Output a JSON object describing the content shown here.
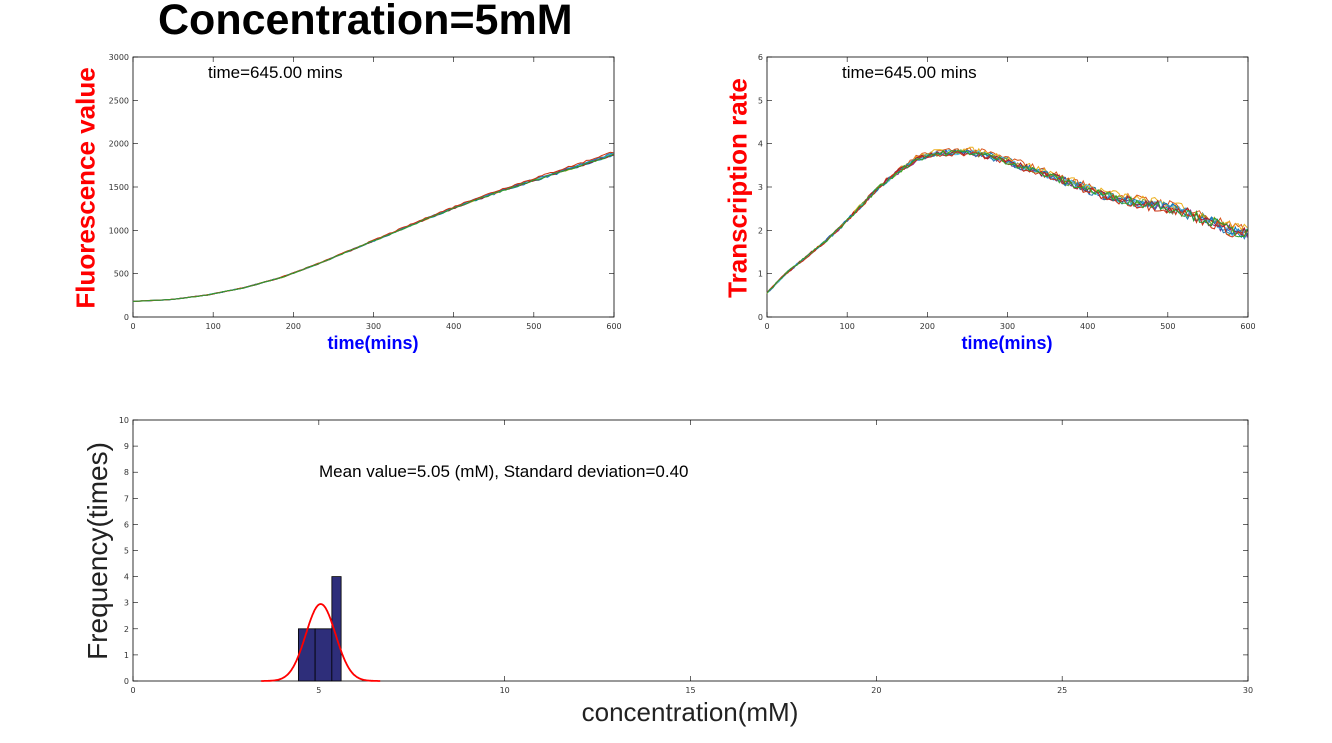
{
  "title": "Concentration=5mM",
  "chart_data": [
    {
      "type": "line",
      "ylabel": "Fluorescence value",
      "xlabel": "time(mins)",
      "annotation": "time=645.00 mins",
      "xlim": [
        0,
        645
      ],
      "ylim": [
        0,
        3000
      ],
      "xticks": [
        "0",
        "100",
        "200",
        "300",
        "400",
        "500",
        "600"
      ],
      "yticks": [
        "0",
        "500",
        "1000",
        "1500",
        "2000",
        "2500",
        "3000"
      ],
      "series_count": 10,
      "x": [
        0,
        50,
        100,
        150,
        200,
        250,
        300,
        350,
        400,
        450,
        500,
        550,
        600,
        645
      ],
      "mean_values": [
        180,
        200,
        255,
        340,
        460,
        620,
        800,
        980,
        1160,
        1330,
        1480,
        1620,
        1760,
        1890
      ],
      "colors": [
        "#0072bd",
        "#d95319",
        "#edb120",
        "#7e2f8e",
        "#77ac30",
        "#4dbeee",
        "#a2142f",
        "#1f77b4",
        "#cc3311",
        "#2ca02c"
      ]
    },
    {
      "type": "line",
      "ylabel": "Transcription rate",
      "xlabel": "time(mins)",
      "annotation": "time=645.00 mins",
      "xlim": [
        0,
        645
      ],
      "ylim": [
        0,
        6
      ],
      "xticks": [
        "0",
        "100",
        "200",
        "300",
        "400",
        "500",
        "600"
      ],
      "yticks": [
        "0",
        "1",
        "2",
        "3",
        "4",
        "5",
        "6"
      ],
      "series_count": 10,
      "x": [
        0,
        25,
        50,
        75,
        100,
        125,
        150,
        175,
        200,
        225,
        250,
        275,
        300,
        325,
        350,
        375,
        400,
        425,
        450,
        475,
        500,
        525,
        550,
        575,
        600,
        625,
        645
      ],
      "mean_values": [
        0.55,
        1.0,
        1.35,
        1.7,
        2.1,
        2.55,
        3.0,
        3.35,
        3.65,
        3.78,
        3.82,
        3.82,
        3.72,
        3.6,
        3.45,
        3.3,
        3.15,
        3.0,
        2.85,
        2.75,
        2.65,
        2.6,
        2.5,
        2.35,
        2.2,
        2.0,
        1.95
      ],
      "colors": [
        "#0072bd",
        "#d95319",
        "#edb120",
        "#7e2f8e",
        "#77ac30",
        "#4dbeee",
        "#a2142f",
        "#1f77b4",
        "#cc3311",
        "#2ca02c"
      ]
    },
    {
      "type": "bar",
      "ylabel": "Frequency(times)",
      "xlabel": "concentration(mM)",
      "annotation": "Mean value=5.05 (mM), Standard deviation=0.40",
      "xlim": [
        0,
        30
      ],
      "ylim": [
        0,
        10
      ],
      "xticks": [
        "0",
        "5",
        "10",
        "15",
        "20",
        "25",
        "30"
      ],
      "yticks": [
        "0",
        "1",
        "2",
        "3",
        "4",
        "5",
        "6",
        "7",
        "8",
        "9",
        "10"
      ],
      "bins": [
        {
          "from": 4.45,
          "to": 4.9,
          "count": 2
        },
        {
          "from": 4.9,
          "to": 5.35,
          "count": 2
        },
        {
          "from": 5.35,
          "to": 5.6,
          "count": 4
        }
      ],
      "bar_color": "#2e2e7a",
      "fit": {
        "type": "normal",
        "mean": 5.05,
        "std": 0.4,
        "peak": 2.95,
        "color": "#ff0000"
      }
    }
  ]
}
